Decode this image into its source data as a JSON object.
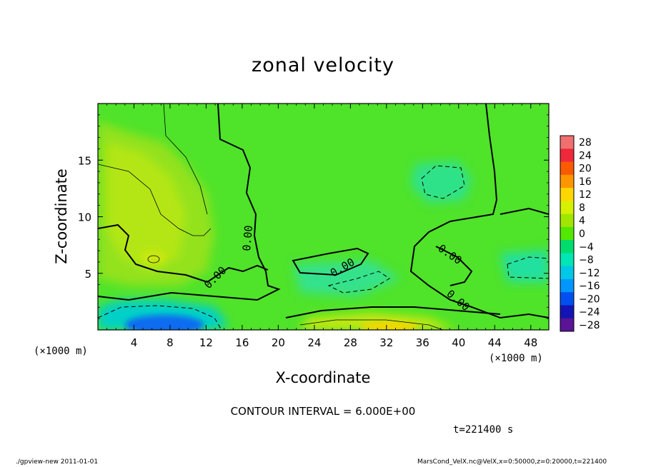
{
  "chart_data": {
    "type": "heatmap",
    "title": "zonal velocity",
    "xlabel": "X-coordinate",
    "ylabel": "Z-coordinate",
    "x_unit": "(×1000 m)",
    "y_unit": "(×1000 m)",
    "xlim": [
      0,
      50
    ],
    "ylim": [
      0,
      20
    ],
    "x_ticks": [
      4,
      8,
      12,
      16,
      20,
      24,
      28,
      32,
      36,
      40,
      44,
      48
    ],
    "y_ticks": [
      5,
      10,
      15
    ],
    "colorbar": {
      "levels": [
        28,
        24,
        20,
        16,
        12,
        8,
        4,
        0,
        -4,
        -8,
        -12,
        -16,
        -20,
        -24,
        -28
      ],
      "labels": [
        "28",
        "24",
        "20",
        "16",
        "12",
        "8",
        "4",
        "0",
        "−4",
        "−8",
        "−12",
        "−16",
        "−20",
        "−24",
        "−28"
      ],
      "colors": [
        "#f06f6f",
        "#f0283c",
        "#fa5a00",
        "#ff9600",
        "#ffd700",
        "#d6f000",
        "#a0e600",
        "#52e800",
        "#00dc6e",
        "#00e6b4",
        "#00c8e6",
        "#0096ff",
        "#0050f0",
        "#1414b4",
        "#5a1496"
      ]
    },
    "contour_labels": [
      "0.00",
      "0.00",
      "0.00",
      "0.00",
      "0.00"
    ],
    "contour_interval": "CONTOUR INTERVAL = 6.000E+00",
    "time": "t=221400 s"
  },
  "footer": {
    "left": "./gpview-new   2011-01-01",
    "right": "MarsCond_VelX.nc@VelX,x=0:50000,z=0:20000,t=221400"
  }
}
